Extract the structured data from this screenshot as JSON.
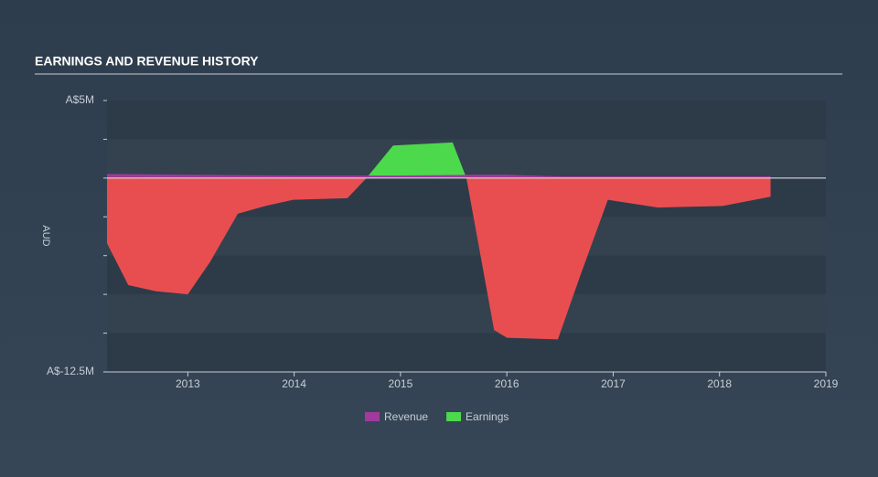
{
  "chart_data": {
    "type": "area",
    "title": "EARNINGS AND REVENUE HISTORY",
    "y_label": "AUD",
    "xlim": [
      2012.24,
      2019
    ],
    "xticks": [
      2013,
      2014,
      2015,
      2016,
      2017,
      2018,
      2019
    ],
    "ylim": [
      -12.5,
      5
    ],
    "yticks": [
      {
        "value": 5,
        "label": "A$5M"
      },
      {
        "value": 2.5,
        "label": null
      },
      {
        "value": 0,
        "label": null
      },
      {
        "value": -2.5,
        "label": null
      },
      {
        "value": -5,
        "label": null
      },
      {
        "value": -7.5,
        "label": null
      },
      {
        "value": -10,
        "label": null
      },
      {
        "value": -12.5,
        "label": "A$-12.5M"
      }
    ],
    "series": [
      {
        "name": "Revenue",
        "color": "#a23a9e",
        "x": [
          2012.24,
          2013.0,
          2014.0,
          2015.0,
          2015.62,
          2016.0,
          2016.48,
          2017.0,
          2018.0,
          2018.48
        ],
        "values": [
          0.2,
          0.15,
          0.1,
          0.1,
          0.15,
          0.15,
          0.05,
          0.05,
          0.05,
          0.05
        ]
      },
      {
        "name": "Earnings",
        "color": "#4cd94c",
        "negative_color": "#e84e50",
        "x": [
          2012.24,
          2012.44,
          2012.7,
          2013.0,
          2013.21,
          2013.47,
          2013.73,
          2013.99,
          2014.5,
          2014.68,
          2014.93,
          2015.49,
          2015.62,
          2015.88,
          2016.0,
          2016.48,
          2016.69,
          2016.95,
          2017.42,
          2018.03,
          2018.48
        ],
        "values": [
          -4.2,
          -6.9,
          -7.3,
          -7.5,
          -5.4,
          -2.3,
          -1.8,
          -1.4,
          -1.3,
          0,
          2.1,
          2.3,
          0,
          -9.8,
          -10.3,
          -10.4,
          -6.3,
          -1.4,
          -1.9,
          -1.8,
          -1.2
        ]
      }
    ]
  }
}
